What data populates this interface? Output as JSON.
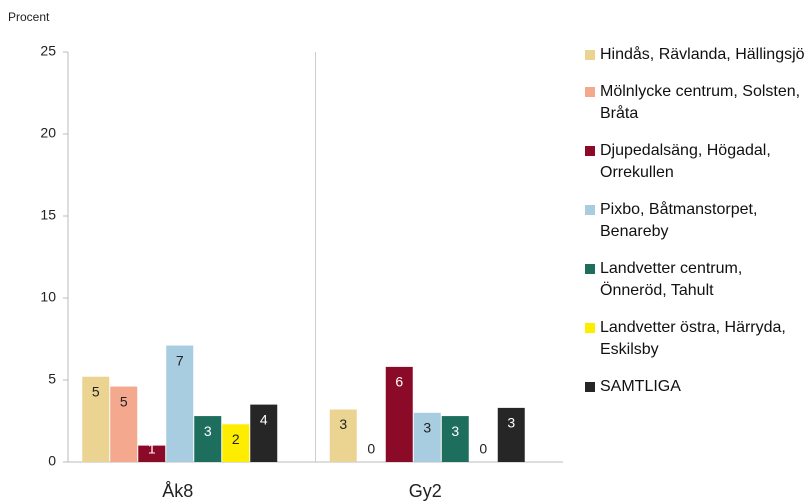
{
  "chart_data": {
    "type": "bar",
    "y_label": "Procent",
    "categories": [
      "Åk8",
      "Gy2"
    ],
    "series": [
      {
        "name": "Hindås, Rävlanda, Hällingsjö",
        "color": "#ebd491",
        "values": [
          5.2,
          3.2
        ],
        "value_labels": [
          "5",
          "3"
        ]
      },
      {
        "name": "Mölnlycke centrum, Solsten, Bråta",
        "color": "#f4a98e",
        "values": [
          4.6,
          0
        ],
        "value_labels": [
          "5",
          "0"
        ]
      },
      {
        "name": "Djupedalsäng, Högadal, Orrekullen",
        "color": "#8b0a28",
        "values": [
          1.0,
          5.8
        ],
        "value_labels": [
          "1",
          "6"
        ]
      },
      {
        "name": "Pixbo, Båtmanstorpet, Benareby",
        "color": "#a8cce0",
        "values": [
          7.1,
          3.0
        ],
        "value_labels": [
          "7",
          "3"
        ]
      },
      {
        "name": "Landvetter centrum, Önneröd, Tahult",
        "color": "#1e6e5e",
        "values": [
          2.8,
          2.8
        ],
        "value_labels": [
          "3",
          "3"
        ]
      },
      {
        "name": "Landvetter östra, Härryda, Eskilsby",
        "color": "#ffed00",
        "values": [
          2.3,
          0
        ],
        "value_labels": [
          "2",
          "0"
        ]
      },
      {
        "name": "SAMTLIGA",
        "color": "#262626",
        "values": [
          3.5,
          3.3
        ],
        "value_labels": [
          "4",
          "3"
        ]
      }
    ],
    "ylim": [
      0,
      25
    ],
    "yticks": [
      0,
      5,
      10,
      15,
      20,
      25
    ],
    "grid": false
  }
}
